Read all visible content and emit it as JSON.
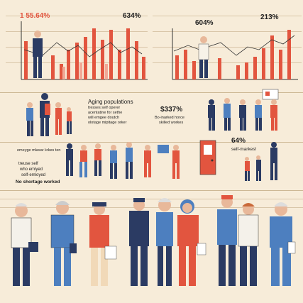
{
  "top_left_panel": {
    "stat_label": "1 55.64%"
  },
  "top_mid_panel": {
    "stat_label": "634%"
  },
  "top_right_panel": {
    "stat_label": "604%",
    "stat_label_2": "213%"
  },
  "middle_panel": {
    "heading": "Aging populations",
    "lines": [
      "tresses self operer",
      "acentatine for sethe",
      "will emgee doutch",
      "olotage mipitage orker"
    ],
    "stat": "$337%",
    "stat_sub_1": "Bo-inarked horce",
    "stat_sub_2": "skilled workes"
  },
  "left_mid_labels": {
    "caption": "emeyge mlaxar krkes ten"
  },
  "left_bottom_labels": {
    "line1": "treuse self",
    "line2": "who emlyed",
    "line3": "self-emloyed",
    "line4": "No shortage worked"
  },
  "right_mid_panel": {
    "stat": "64%",
    "sub": "self-markes!"
  },
  "colors": {
    "bg": "#f7ecd9",
    "red": "#e2553f",
    "navy": "#2b3b63",
    "blue": "#4d7fbf",
    "grid": "#d9c6a9"
  }
}
